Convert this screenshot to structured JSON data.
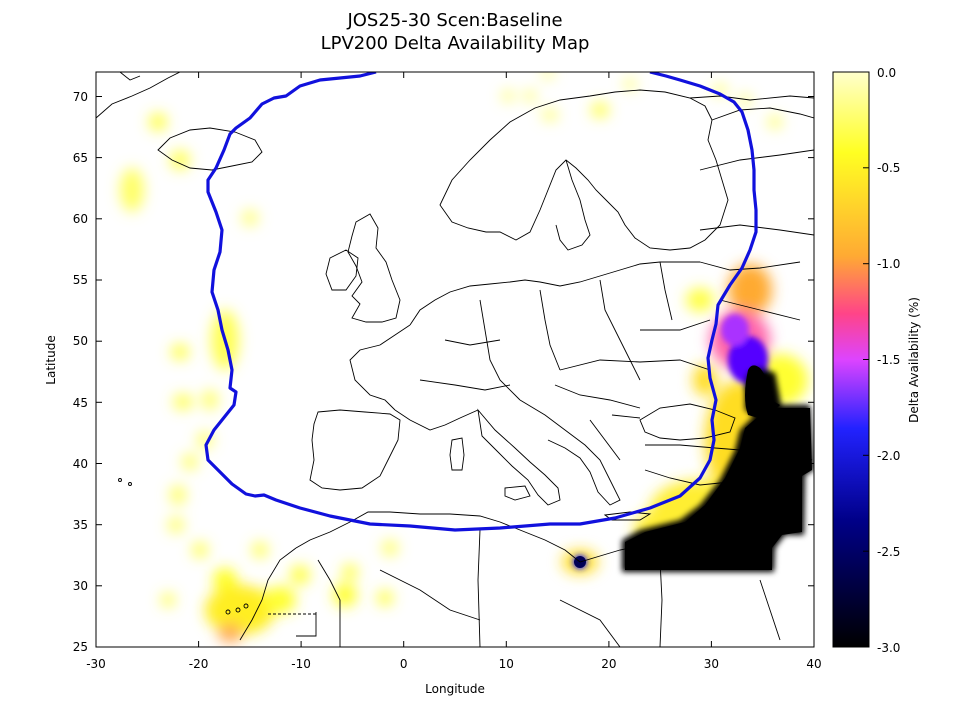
{
  "title": {
    "line1": "JOS25-30 Scen:Baseline",
    "line2": "LPV200 Delta Availability Map"
  },
  "axes": {
    "xlabel": "Longitude",
    "ylabel": "Latitude",
    "xticks": [
      "-30",
      "-20",
      "-10",
      "0",
      "10",
      "20",
      "30",
      "40"
    ],
    "yticks": [
      "25",
      "30",
      "35",
      "40",
      "45",
      "50",
      "55",
      "60",
      "65",
      "70"
    ]
  },
  "colorbar": {
    "label": "Delta Availability (%)",
    "ticks": [
      "0.0",
      "-0.5",
      "-1.0",
      "-1.5",
      "-2.0",
      "-2.5",
      "-3.0"
    ]
  },
  "chart_data": {
    "type": "heatmap",
    "title": "JOS25-30 Scen:Baseline\nLPV200 Delta Availability Map",
    "xlabel": "Longitude",
    "ylabel": "Latitude",
    "xlim": [
      -30,
      40
    ],
    "ylim": [
      25,
      72
    ],
    "colorbar_range": [
      -3.0,
      0.0
    ],
    "colorbar_label": "Delta Availability (%)",
    "colormap": [
      "#000000",
      "#0000ff",
      "#aa00ff",
      "#ff3399",
      "#ffaa33",
      "#ffff00",
      "#ffffcc"
    ],
    "service_area_outline_color": "#1111dd",
    "regions": [
      {
        "lon": 33.5,
        "lat": 46.5,
        "value": -3.0
      },
      {
        "lon": 36.5,
        "lat": 41.5,
        "value": -3.0
      },
      {
        "lon": 28.0,
        "lat": 33.5,
        "value": -3.0
      },
      {
        "lon": 33.0,
        "lat": 33.5,
        "value": -3.0
      },
      {
        "lon": 33.0,
        "lat": 49.0,
        "value": -1.5
      },
      {
        "lon": 32.0,
        "lat": 52.5,
        "value": -0.7
      },
      {
        "lon": 16.8,
        "lat": 32.0,
        "value": -2.0
      },
      {
        "lon": -17.0,
        "lat": 26.5,
        "value": -0.6
      },
      {
        "lon": -16.0,
        "lat": 29.0,
        "value": -0.2
      },
      {
        "lon": -20.0,
        "lat": 50.0,
        "value": -0.2
      },
      {
        "lon": -26.0,
        "lat": 62.0,
        "value": -0.1
      },
      {
        "lon": -24.5,
        "lat": 68.0,
        "value": -0.1
      },
      {
        "lon": -22.5,
        "lat": 49.0,
        "value": -0.1
      },
      {
        "lon": -22.0,
        "lat": 45.0,
        "value": -0.1
      },
      {
        "lon": -5.0,
        "lat": 30.0,
        "value": -0.1
      },
      {
        "lon": 29.5,
        "lat": 46.5,
        "value": -0.2
      },
      {
        "lon": 10.0,
        "lat": 70.0,
        "value": -0.1
      },
      {
        "lon": 36.0,
        "lat": 68.0,
        "value": -0.1
      }
    ]
  }
}
